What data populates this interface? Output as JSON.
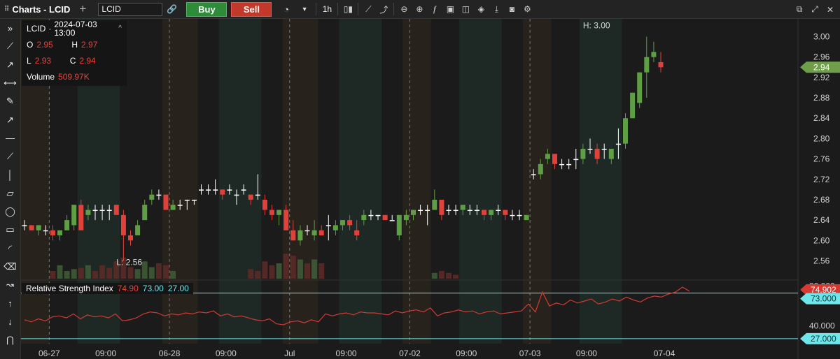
{
  "toolbar": {
    "title": "Charts - LCID",
    "symbol_value": "LCID",
    "buy_label": "Buy",
    "sell_label": "Sell",
    "interval": "1h"
  },
  "left_tools": [
    "chevrons-right-icon",
    "trend-line-icon",
    "ray-icon",
    "horizontal-ray-icon",
    "brush-icon",
    "arrow-icon",
    "horizontal-line-icon",
    "extended-line-icon",
    "vertical-line-icon",
    "parallelogram-icon",
    "ellipse-icon",
    "rectangle-icon",
    "arc-icon",
    "eraser-icon",
    "trend-arrow-icon",
    "arrow-up-icon",
    "arrow-down-icon",
    "magnet-icon"
  ],
  "legend": {
    "symbol": "LCID",
    "datetime": "2024-07-03 13:00",
    "open_label": "O",
    "open": "2.95",
    "high_label": "H",
    "high": "2.97",
    "low_label": "L",
    "low": "2.93",
    "close_label": "C",
    "close": "2.94",
    "volume_label": "Volume",
    "volume": "509.97K"
  },
  "rsi_legend": {
    "name": "Relative Strength Index",
    "value": "74.90",
    "upper": "73.00",
    "lower": "27.00"
  },
  "annotations": {
    "high": "H: 3.00",
    "low": "L: 2.56"
  },
  "price_badge": "2.94",
  "rsi_badges": {
    "value": "74.902",
    "upper": "73.000",
    "lower": "27.000"
  },
  "colors": {
    "up": "#5e9e44",
    "down": "#e0413a",
    "neutral": "#ffffff",
    "cyan": "#6fe6ea",
    "badge_green": "#6e9e4a",
    "badge_red": "#d73a32"
  },
  "chart_data": {
    "type": "candlestick",
    "price_axis": {
      "ticks": [
        "3.00",
        "2.96",
        "2.92",
        "2.88",
        "2.84",
        "2.80",
        "2.76",
        "2.72",
        "2.68",
        "2.64",
        "2.60",
        "2.56"
      ],
      "range": [
        2.525,
        3.035
      ]
    },
    "rsi_axis": {
      "ticks": [
        "80.000",
        "40.000"
      ],
      "range": [
        22,
        84
      ]
    },
    "time_labels": [
      {
        "label": "06-27",
        "i": 3.5
      },
      {
        "label": "09:00",
        "i": 11.5
      },
      {
        "label": "06-28",
        "i": 20.5
      },
      {
        "label": "09:00",
        "i": 28.5
      },
      {
        "label": "Jul",
        "i": 37.5
      },
      {
        "label": "09:00",
        "i": 45.5
      },
      {
        "label": "07-02",
        "i": 54.5
      },
      {
        "label": "09:00",
        "i": 62.5
      },
      {
        "label": "07-03",
        "i": 71.5
      },
      {
        "label": "09:00",
        "i": 79.5
      },
      {
        "label": "07-04",
        "i": 90.5
      }
    ],
    "day_separators": [
      3.5,
      20.5,
      37.5,
      54.5,
      71.5
    ],
    "candles": [
      [
        2.63,
        2.64,
        2.62,
        2.63,
        0
      ],
      [
        2.63,
        2.63,
        2.62,
        2.62,
        0
      ],
      [
        2.62,
        2.63,
        2.61,
        2.63,
        0
      ],
      [
        2.62,
        2.63,
        2.61,
        2.62,
        0
      ],
      [
        2.62,
        2.63,
        2.6,
        2.61,
        20
      ],
      [
        2.61,
        2.62,
        2.6,
        2.62,
        35
      ],
      [
        2.62,
        2.65,
        2.62,
        2.64,
        20
      ],
      [
        2.63,
        2.67,
        2.62,
        2.67,
        25
      ],
      [
        2.67,
        2.68,
        2.62,
        2.62,
        28
      ],
      [
        2.65,
        2.67,
        2.64,
        2.66,
        35
      ],
      [
        2.66,
        2.67,
        2.64,
        2.66,
        20
      ],
      [
        2.66,
        2.67,
        2.64,
        2.66,
        35
      ],
      [
        2.66,
        2.67,
        2.64,
        2.66,
        28
      ],
      [
        2.67,
        2.67,
        2.65,
        2.65,
        45
      ],
      [
        2.65,
        2.66,
        2.56,
        2.61,
        55
      ],
      [
        2.61,
        2.62,
        2.59,
        2.6,
        30
      ],
      [
        2.61,
        2.64,
        2.61,
        2.63,
        25
      ],
      [
        2.64,
        2.68,
        2.64,
        2.67,
        45
      ],
      [
        2.68,
        2.7,
        2.67,
        2.69,
        30
      ],
      [
        2.69,
        2.7,
        2.68,
        2.69,
        40
      ],
      [
        2.69,
        2.69,
        2.66,
        2.66,
        35
      ],
      [
        2.66,
        2.68,
        2.66,
        2.67,
        20
      ],
      [
        2.67,
        2.68,
        2.66,
        2.67,
        0
      ],
      [
        2.68,
        2.68,
        2.66,
        2.68,
        0
      ],
      [
        2.68,
        2.68,
        2.67,
        2.68,
        0
      ],
      [
        2.7,
        2.71,
        2.69,
        2.7,
        0
      ],
      [
        2.7,
        2.71,
        2.69,
        2.7,
        0
      ],
      [
        2.7,
        2.72,
        2.69,
        2.7,
        0
      ],
      [
        2.7,
        2.7,
        2.68,
        2.69,
        0
      ],
      [
        2.7,
        2.71,
        2.69,
        2.7,
        0
      ],
      [
        2.69,
        2.7,
        2.67,
        2.69,
        0
      ],
      [
        2.7,
        2.71,
        2.69,
        2.7,
        0
      ],
      [
        2.69,
        2.69,
        2.67,
        2.68,
        25
      ],
      [
        2.69,
        2.73,
        2.68,
        2.69,
        20
      ],
      [
        2.68,
        2.69,
        2.65,
        2.66,
        45
      ],
      [
        2.66,
        2.67,
        2.64,
        2.65,
        35
      ],
      [
        2.65,
        2.66,
        2.63,
        2.66,
        40
      ],
      [
        2.66,
        2.67,
        2.62,
        2.62,
        65
      ],
      [
        2.62,
        2.64,
        2.6,
        2.6,
        60
      ],
      [
        2.6,
        2.63,
        2.59,
        2.62,
        50
      ],
      [
        2.62,
        2.63,
        2.61,
        2.62,
        40
      ],
      [
        2.61,
        2.64,
        2.6,
        2.62,
        50
      ],
      [
        2.62,
        2.63,
        2.61,
        2.61,
        40
      ],
      [
        2.63,
        2.65,
        2.6,
        2.63,
        0
      ],
      [
        2.62,
        2.64,
        2.61,
        2.63,
        0
      ],
      [
        2.63,
        2.64,
        2.62,
        2.64,
        0
      ],
      [
        2.64,
        2.65,
        2.62,
        2.63,
        0
      ],
      [
        2.62,
        2.64,
        2.6,
        2.61,
        0
      ],
      [
        2.64,
        2.66,
        2.63,
        2.65,
        0
      ],
      [
        2.65,
        2.66,
        2.64,
        2.65,
        0
      ],
      [
        2.65,
        2.65,
        2.64,
        2.65,
        0
      ],
      [
        2.65,
        2.65,
        2.64,
        2.64,
        0
      ],
      [
        2.64,
        2.65,
        2.64,
        2.64,
        0
      ],
      [
        2.61,
        2.65,
        2.6,
        2.65,
        0
      ],
      [
        2.64,
        2.66,
        2.63,
        2.65,
        0
      ],
      [
        2.65,
        2.66,
        2.64,
        2.66,
        0
      ],
      [
        2.66,
        2.67,
        2.65,
        2.66,
        0
      ],
      [
        2.66,
        2.67,
        2.63,
        2.66,
        0
      ],
      [
        2.66,
        2.7,
        2.66,
        2.68,
        15
      ],
      [
        2.68,
        2.68,
        2.64,
        2.65,
        20
      ],
      [
        2.66,
        2.67,
        2.65,
        2.66,
        15
      ],
      [
        2.66,
        2.67,
        2.65,
        2.66,
        10
      ],
      [
        2.66,
        2.67,
        2.65,
        2.67,
        0
      ],
      [
        2.66,
        2.67,
        2.65,
        2.66,
        0
      ],
      [
        2.66,
        2.67,
        2.65,
        2.66,
        0
      ],
      [
        2.66,
        2.66,
        2.64,
        2.65,
        0
      ],
      [
        2.65,
        2.66,
        2.64,
        2.66,
        0
      ],
      [
        2.66,
        2.67,
        2.65,
        2.66,
        0
      ],
      [
        2.66,
        2.66,
        2.64,
        2.65,
        0
      ],
      [
        2.65,
        2.66,
        2.64,
        2.65,
        0
      ],
      [
        2.65,
        2.66,
        2.64,
        2.65,
        0
      ],
      [
        2.64,
        2.65,
        2.64,
        2.65,
        0
      ]
    ]
  }
}
